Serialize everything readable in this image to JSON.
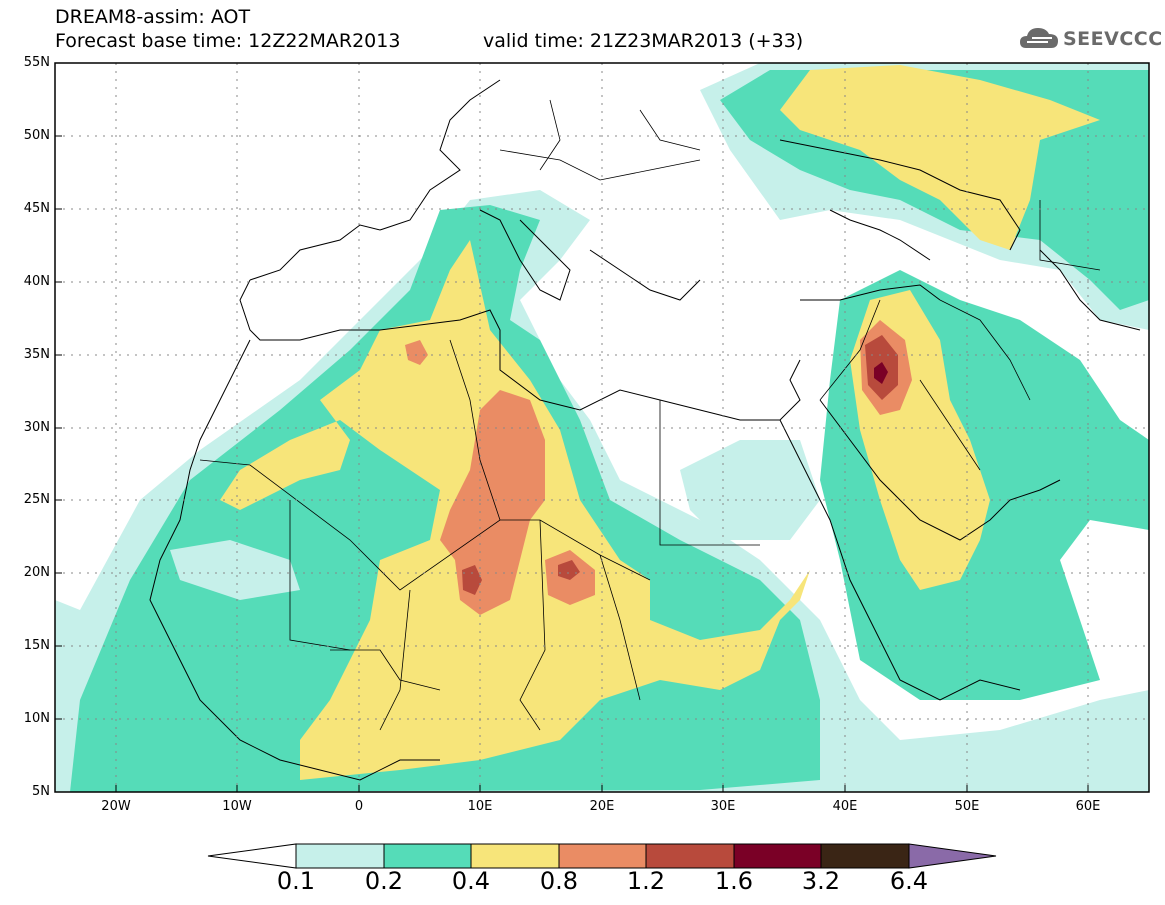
{
  "header": {
    "title": "DREAM8-assim: AOT",
    "base_time": "Forecast base time: 12Z22MAR2013",
    "valid_time": "valid time: 21Z23MAR2013 (+33)"
  },
  "logo": {
    "text": "SEEVCCC",
    "icon": "cloud-logo-icon"
  },
  "map": {
    "lat_labels": [
      "55N",
      "50N",
      "45N",
      "40N",
      "35N",
      "30N",
      "25N",
      "20N",
      "15N",
      "10N",
      "5N"
    ],
    "lon_labels": [
      "20W",
      "10W",
      "0",
      "10E",
      "20E",
      "30E",
      "40E",
      "50E",
      "60E"
    ],
    "grid": "dotted"
  },
  "colorbar": {
    "labels": [
      "0.1",
      "0.2",
      "0.4",
      "0.8",
      "1.2",
      "1.6",
      "3.2",
      "6.4"
    ],
    "colors": [
      "#c6f0ea",
      "#55dcb8",
      "#f7e57a",
      "#ea8c64",
      "#b84a3c",
      "#7a0026",
      "#3a2515",
      "#8a6aa8"
    ],
    "under_color": "#ffffff"
  }
}
